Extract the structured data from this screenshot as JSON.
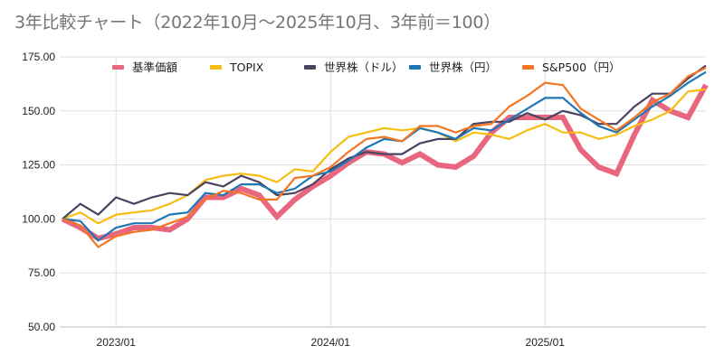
{
  "chart_data": {
    "type": "line",
    "title": "3年比較チャート（2022年10月～2025年10月、3年前＝100）",
    "xlabel": "",
    "ylabel": "",
    "ylim": [
      50,
      175
    ],
    "yticks": [
      50,
      75,
      100,
      125,
      150,
      175
    ],
    "ytick_labels": [
      "50.00",
      "75.00",
      "100.00",
      "125.00",
      "150.00",
      "175.00"
    ],
    "xticks": [
      {
        "label": "2023/01",
        "index": 3
      },
      {
        "label": "2024/01",
        "index": 15
      },
      {
        "label": "2025/01",
        "index": 27
      }
    ],
    "x": [
      "2022/10",
      "2022/11",
      "2022/12",
      "2023/01",
      "2023/02",
      "2023/03",
      "2023/04",
      "2023/05",
      "2023/06",
      "2023/07",
      "2023/08",
      "2023/09",
      "2023/10",
      "2023/11",
      "2023/12",
      "2024/01",
      "2024/02",
      "2024/03",
      "2024/04",
      "2024/05",
      "2024/06",
      "2024/07",
      "2024/08",
      "2024/09",
      "2024/10",
      "2024/11",
      "2024/12",
      "2025/01",
      "2025/02",
      "2025/03",
      "2025/04",
      "2025/05",
      "2025/06",
      "2025/07",
      "2025/08",
      "2025/09",
      "2025/10"
    ],
    "grid": true,
    "legend_position": "top",
    "series": [
      {
        "name": "基準価額",
        "color": "#e8667e",
        "width": "thick",
        "values": [
          100,
          96,
          91,
          93,
          96,
          96,
          95,
          100,
          110,
          110,
          114,
          111,
          101,
          109,
          115,
          120,
          126,
          131,
          130,
          126,
          130,
          125,
          124,
          129,
          140,
          147,
          147,
          147,
          147,
          132,
          124,
          121,
          139,
          155,
          150,
          147,
          162
        ]
      },
      {
        "name": "TOPIX",
        "color": "#f7bd12",
        "width": "normal",
        "values": [
          100,
          103,
          98,
          102,
          103,
          104,
          107,
          111,
          118,
          120,
          121,
          120,
          117,
          123,
          122,
          131,
          138,
          140,
          142,
          141,
          142,
          140,
          136,
          140,
          139,
          137,
          141,
          144,
          140,
          140,
          137,
          139,
          143,
          146,
          150,
          159,
          160
        ]
      },
      {
        "name": "世界株（ドル）",
        "color": "#4b4460",
        "width": "normal",
        "values": [
          100,
          107,
          102,
          110,
          107,
          110,
          112,
          111,
          117,
          115,
          120,
          117,
          111,
          112,
          116,
          123,
          128,
          131,
          130,
          130,
          135,
          137,
          137,
          144,
          145,
          145,
          149,
          146,
          150,
          148,
          144,
          144,
          152,
          158,
          158,
          165,
          171
        ]
      },
      {
        "name": "世界株（円）",
        "color": "#1f77b4",
        "width": "normal",
        "values": [
          100,
          99,
          90,
          96,
          98,
          98,
          102,
          103,
          112,
          111,
          116,
          116,
          112,
          114,
          120,
          122,
          127,
          133,
          137,
          136,
          142,
          140,
          137,
          142,
          141,
          146,
          151,
          156,
          156,
          149,
          143,
          140,
          146,
          152,
          157,
          163,
          168
        ]
      },
      {
        "name": "S&P500（円）",
        "color": "#f47522",
        "width": "normal",
        "values": [
          100,
          97,
          87,
          92,
          94,
          95,
          98,
          101,
          109,
          113,
          112,
          109,
          109,
          119,
          120,
          124,
          131,
          137,
          138,
          136,
          143,
          143,
          140,
          143,
          144,
          152,
          157,
          163,
          162,
          151,
          146,
          141,
          147,
          154,
          158,
          166,
          170
        ]
      }
    ]
  }
}
